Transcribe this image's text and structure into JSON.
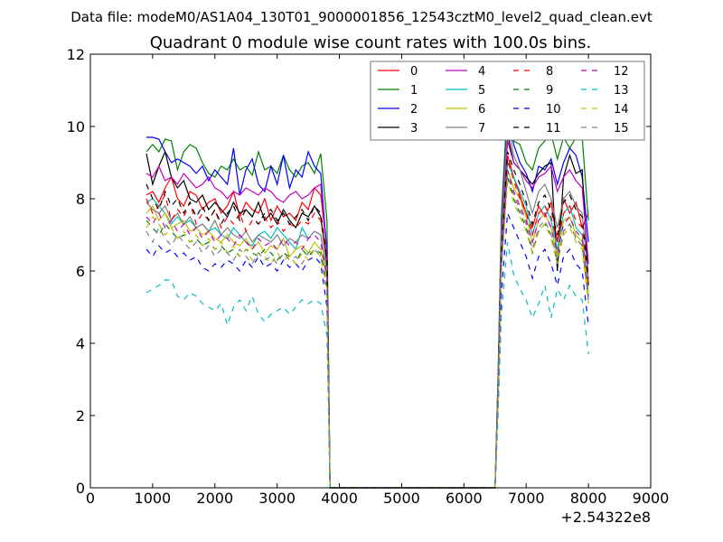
{
  "chart_data": {
    "type": "line",
    "suptitle": "Data file: modeM0/AS1A04_130T01_9000001856_12543cztM0_level2_quad_clean.evt",
    "title": "Quadrant 0 module wise count rates with 100.0s bins.",
    "xlabel": "",
    "ylabel": "",
    "x_offset_label": "+2.54322e8",
    "xlim": [
      0,
      9000
    ],
    "ylim": [
      0,
      12
    ],
    "xticks": [
      0,
      1000,
      2000,
      3000,
      4000,
      5000,
      6000,
      7000,
      8000,
      9000
    ],
    "yticks": [
      0,
      2,
      4,
      6,
      8,
      10,
      12
    ],
    "xtick_labels": [
      "0",
      "1000",
      "2000",
      "3000",
      "4000",
      "5000",
      "6000",
      "7000",
      "8000",
      "9000"
    ],
    "ytick_labels": [
      "0",
      "2",
      "4",
      "6",
      "8",
      "10",
      "12"
    ],
    "legend_position": "top-right",
    "legend_columns": 4,
    "segments": [
      {
        "x_start": 900,
        "x_end": 3700,
        "step": 100
      },
      {
        "x_start": 6700,
        "x_end": 8000,
        "step": 100
      }
    ],
    "series": [
      {
        "name": "0",
        "color": "#ff0000",
        "dash": "solid",
        "seg1": [
          8.1,
          8.2,
          7.9,
          8.3,
          8.6,
          8.0,
          7.8,
          8.2,
          8.1,
          7.7,
          7.9,
          8.0,
          7.6,
          7.8,
          8.2,
          7.5,
          7.9,
          7.7,
          7.6,
          8.0,
          7.4,
          7.8,
          7.5,
          7.6,
          7.4,
          7.9,
          7.7,
          8.3,
          8.1
        ],
        "seg1_end": 6.6,
        "seg2": [
          9.2,
          8.6,
          8.1,
          7.6,
          7.2,
          7.8,
          7.5,
          7.9,
          6.8,
          8.0,
          7.6,
          7.9,
          7.2,
          7.6
        ],
        "seg2_end": 5.8
      },
      {
        "name": "1",
        "color": "#008000",
        "dash": "solid",
        "seg1": [
          9.3,
          9.5,
          9.3,
          9.65,
          9.6,
          8.8,
          9.3,
          9.5,
          9.4,
          9.0,
          8.7,
          8.6,
          8.9,
          8.8,
          9.1,
          8.8,
          8.9,
          8.65,
          9.3,
          8.8,
          8.9,
          8.7,
          9.2,
          8.8,
          8.6,
          8.9,
          9.0,
          8.7,
          9.25
        ],
        "seg1_end": 7.4,
        "seg2": [
          10.7,
          9.6,
          9.5,
          9.0,
          8.8,
          9.4,
          9.6,
          9.8,
          9.1,
          9.7,
          9.4,
          9.7,
          9.7,
          7.4
        ],
        "seg2_end": 7.4
      },
      {
        "name": "2",
        "color": "#0000ff",
        "dash": "solid",
        "seg1": [
          9.7,
          9.7,
          9.65,
          9.3,
          9.0,
          9.1,
          9.0,
          8.9,
          8.7,
          8.9,
          8.5,
          8.8,
          8.6,
          8.4,
          9.4,
          8.1,
          8.8,
          9.1,
          8.4,
          8.2,
          8.9,
          8.4,
          9.2,
          8.3,
          8.8,
          8.6,
          9.3,
          8.9,
          8.7
        ],
        "seg1_end": 6.5,
        "seg2": [
          10.3,
          9.5,
          9.0,
          8.7,
          8.2,
          8.9,
          8.8,
          9.1,
          8.4,
          9.0,
          9.4,
          9.2,
          8.6,
          6.8
        ],
        "seg2_end": 6.8
      },
      {
        "name": "3",
        "color": "#000000",
        "dash": "solid",
        "seg1": [
          9.25,
          8.4,
          8.9,
          9.3,
          8.6,
          8.3,
          8.5,
          8.0,
          7.9,
          8.1,
          7.7,
          7.9,
          7.7,
          7.5,
          7.9,
          7.6,
          7.7,
          7.5,
          7.9,
          7.4,
          7.6,
          7.3,
          7.7,
          7.4,
          7.2,
          7.6,
          7.5,
          7.8,
          7.5
        ],
        "seg1_end": 6.2,
        "seg2": [
          9.8,
          9.0,
          8.8,
          8.6,
          8.4,
          8.7,
          8.9,
          9.0,
          6.0,
          8.6,
          9.2,
          8.7,
          8.8,
          5.6
        ],
        "seg2_end": 5.6
      },
      {
        "name": "4",
        "color": "#bf00bf",
        "dash": "solid",
        "seg1": [
          8.7,
          8.6,
          8.9,
          8.5,
          8.6,
          8.4,
          8.7,
          8.5,
          8.3,
          8.4,
          8.6,
          8.3,
          8.2,
          8.0,
          8.2,
          8.1,
          8.3,
          8.2,
          8.1,
          8.3,
          8.2,
          8.0,
          7.9,
          8.1,
          8.2,
          8.0,
          8.1,
          8.3,
          8.4
        ],
        "seg1_end": 6.4,
        "seg2": [
          9.6,
          9.0,
          8.8,
          8.5,
          8.3,
          8.6,
          8.7,
          8.9,
          8.2,
          8.6,
          8.8,
          8.5,
          8.3,
          6.2
        ],
        "seg2_end": 6.2
      },
      {
        "name": "5",
        "color": "#00bfbf",
        "dash": "solid",
        "seg1": [
          7.9,
          8.0,
          7.8,
          7.6,
          7.3,
          7.5,
          7.3,
          7.4,
          7.2,
          7.3,
          7.1,
          7.2,
          7.0,
          6.9,
          7.2,
          7.0,
          6.8,
          6.7,
          7.0,
          7.1,
          6.9,
          7.2,
          7.0,
          6.8,
          6.6,
          7.2,
          6.9,
          7.1,
          7.0
        ],
        "seg1_end": 6.0,
        "seg2": [
          9.0,
          8.6,
          8.2,
          7.8,
          7.0,
          7.6,
          7.8,
          7.4,
          6.6,
          7.6,
          7.8,
          7.2,
          7.0,
          5.4
        ],
        "seg2_end": 5.4
      },
      {
        "name": "6",
        "color": "#bfbf00",
        "dash": "solid",
        "seg1": [
          7.6,
          7.8,
          7.4,
          7.6,
          7.2,
          7.3,
          7.4,
          7.1,
          7.2,
          7.0,
          7.1,
          6.9,
          6.8,
          7.0,
          6.8,
          6.7,
          6.9,
          6.6,
          6.8,
          6.5,
          6.7,
          6.6,
          6.9,
          6.4,
          6.6,
          6.7,
          6.5,
          6.8,
          6.6
        ],
        "seg1_end": 5.8,
        "seg2": [
          8.8,
          8.3,
          8.0,
          7.5,
          6.8,
          7.4,
          7.6,
          7.2,
          6.4,
          7.4,
          7.5,
          7.0,
          6.8,
          5.4
        ],
        "seg2_end": 5.4
      },
      {
        "name": "7",
        "color": "#808080",
        "dash": "solid",
        "seg1": [
          7.9,
          7.7,
          7.6,
          7.8,
          7.4,
          7.6,
          7.3,
          7.5,
          7.2,
          7.3,
          7.1,
          7.4,
          7.0,
          7.2,
          7.0,
          6.9,
          7.1,
          6.8,
          7.0,
          6.9,
          6.8,
          7.0,
          6.7,
          6.9,
          6.8,
          7.0,
          6.9,
          7.1,
          7.0
        ],
        "seg1_end": 5.9,
        "seg2": [
          10.1,
          9.2,
          8.8,
          8.2,
          7.6,
          8.2,
          8.4,
          8.0,
          7.2,
          8.0,
          8.2,
          7.8,
          7.6,
          5.7
        ],
        "seg2_end": 5.7
      },
      {
        "name": "8",
        "color": "#ff0000",
        "dash": "dashed",
        "seg1": [
          8.0,
          7.6,
          7.8,
          8.1,
          7.4,
          7.7,
          7.5,
          7.9,
          7.3,
          7.6,
          7.4,
          7.7,
          7.2,
          7.5,
          7.3,
          7.6,
          7.1,
          7.4,
          7.3,
          7.5,
          7.2,
          7.4,
          7.1,
          7.3,
          7.2,
          7.4,
          7.3,
          7.6,
          7.4
        ],
        "seg1_end": 6.2,
        "seg2": [
          9.1,
          8.5,
          8.0,
          7.6,
          7.0,
          7.6,
          7.8,
          7.5,
          6.8,
          7.6,
          7.8,
          7.4,
          7.2,
          5.6
        ],
        "seg2_end": 5.6
      },
      {
        "name": "9",
        "color": "#008000",
        "dash": "dashed",
        "seg1": [
          7.4,
          7.2,
          7.0,
          7.3,
          7.1,
          6.9,
          7.0,
          6.8,
          6.9,
          6.7,
          6.8,
          6.6,
          6.7,
          6.5,
          6.6,
          6.4,
          6.6,
          6.5,
          6.4,
          6.6,
          6.5,
          6.3,
          6.5,
          6.4,
          6.2,
          6.6,
          6.4,
          6.6,
          6.5
        ],
        "seg1_end": 5.6,
        "seg2": [
          8.6,
          8.0,
          7.6,
          7.2,
          6.5,
          7.1,
          7.3,
          7.0,
          6.2,
          7.1,
          7.3,
          6.9,
          6.7,
          5.2
        ],
        "seg2_end": 5.2
      },
      {
        "name": "10",
        "color": "#0000ff",
        "dash": "dashed",
        "seg1": [
          6.6,
          6.4,
          6.7,
          6.5,
          6.6,
          6.4,
          6.5,
          6.3,
          6.4,
          6.1,
          6.0,
          6.2,
          6.1,
          6.3,
          6.2,
          6.0,
          6.3,
          6.1,
          6.4,
          6.1,
          6.2,
          6.0,
          6.3,
          6.1,
          6.2,
          6.0,
          6.3,
          6.4,
          6.2
        ],
        "seg1_end": 5.0,
        "seg2": [
          7.6,
          7.2,
          6.8,
          6.4,
          5.8,
          6.4,
          6.6,
          6.2,
          5.6,
          6.4,
          6.6,
          6.2,
          6.0,
          4.5
        ],
        "seg2_end": 4.5
      },
      {
        "name": "11",
        "color": "#000000",
        "dash": "dashed",
        "seg1": [
          8.4,
          8.0,
          7.7,
          8.2,
          7.8,
          8.0,
          7.6,
          7.9,
          7.5,
          7.8,
          7.4,
          7.7,
          7.3,
          7.6,
          7.8,
          7.4,
          7.7,
          7.5,
          7.3,
          7.6,
          7.7,
          7.4,
          7.6,
          7.3,
          7.5,
          7.7,
          7.4,
          7.8,
          7.6
        ],
        "seg1_end": 6.3,
        "seg2": [
          9.3,
          8.8,
          8.4,
          7.9,
          7.3,
          7.9,
          8.1,
          7.7,
          7.0,
          7.9,
          8.1,
          7.7,
          7.5,
          5.8
        ],
        "seg2_end": 5.8
      },
      {
        "name": "12",
        "color": "#bf00bf",
        "dash": "dashed",
        "seg1": [
          7.5,
          7.3,
          7.6,
          7.2,
          7.4,
          7.1,
          7.3,
          7.0,
          7.2,
          6.9,
          7.1,
          6.8,
          7.0,
          6.9,
          6.7,
          7.0,
          6.8,
          6.6,
          6.9,
          6.7,
          6.8,
          6.6,
          6.9,
          6.7,
          6.8,
          6.6,
          6.9,
          7.0,
          6.8
        ],
        "seg1_end": 5.8,
        "seg2": [
          8.8,
          8.2,
          7.8,
          7.4,
          6.8,
          7.4,
          7.6,
          7.2,
          6.5,
          7.3,
          7.5,
          7.1,
          6.9,
          5.3
        ],
        "seg2_end": 5.3
      },
      {
        "name": "13",
        "color": "#00bfbf",
        "dash": "dashed",
        "seg1": [
          5.4,
          5.5,
          5.6,
          5.75,
          5.75,
          5.3,
          5.2,
          5.4,
          5.3,
          5.1,
          5.0,
          4.9,
          5.1,
          4.5,
          5.0,
          5.2,
          4.9,
          5.3,
          4.8,
          4.6,
          4.8,
          4.9,
          5.0,
          4.8,
          5.0,
          5.2,
          5.1,
          5.2,
          5.1
        ],
        "seg1_end": 4.2,
        "seg2": [
          6.8,
          5.9,
          5.5,
          5.2,
          4.7,
          5.1,
          5.6,
          4.7,
          5.5,
          5.2,
          5.6,
          5.3,
          5.2,
          3.7
        ],
        "seg2_end": 3.7
      },
      {
        "name": "14",
        "color": "#bfbf00",
        "dash": "dashed",
        "seg1": [
          7.2,
          7.5,
          7.3,
          7.0,
          7.2,
          6.9,
          7.1,
          6.8,
          7.0,
          6.7,
          6.9,
          6.6,
          6.8,
          6.5,
          6.7,
          6.4,
          6.6,
          6.3,
          6.5,
          6.4,
          6.2,
          6.5,
          6.3,
          6.4,
          6.2,
          6.5,
          6.3,
          6.6,
          6.4
        ],
        "seg1_end": 5.5,
        "seg2": [
          8.5,
          7.9,
          7.5,
          7.1,
          6.5,
          7.1,
          7.3,
          6.9,
          6.2,
          7.0,
          7.2,
          6.8,
          6.6,
          5.1
        ],
        "seg2_end": 5.1
      },
      {
        "name": "15",
        "color": "#808080",
        "dash": "dashed",
        "seg1": [
          7.1,
          6.8,
          7.2,
          6.9,
          6.7,
          7.0,
          6.8,
          6.6,
          6.8,
          6.5,
          6.7,
          6.4,
          6.6,
          6.5,
          6.3,
          6.6,
          6.4,
          6.2,
          6.5,
          6.3,
          6.4,
          6.2,
          6.5,
          6.3,
          6.4,
          6.2,
          6.5,
          6.6,
          6.4
        ],
        "seg1_end": 5.4,
        "seg2": [
          8.7,
          8.1,
          7.7,
          7.3,
          6.6,
          7.2,
          7.4,
          7.0,
          6.3,
          7.1,
          7.3,
          6.9,
          6.7,
          5.2
        ],
        "seg2_end": 5.2
      }
    ]
  }
}
